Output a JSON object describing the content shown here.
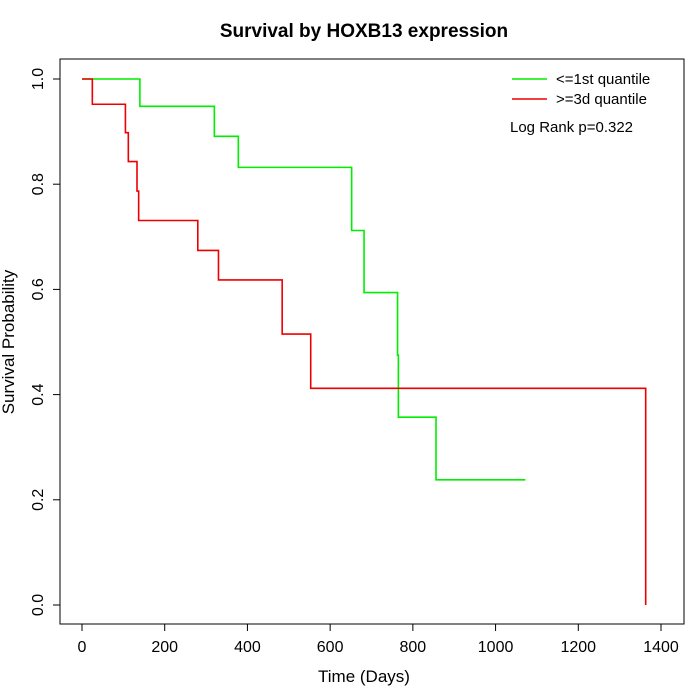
{
  "chart_data": {
    "type": "line",
    "title": "Survival by HOXB13 expression",
    "xlabel": "Time (Days)",
    "ylabel": "Survival Probability",
    "xlim": [
      0,
      1400
    ],
    "ylim": [
      0,
      1.0
    ],
    "x_ticks": [
      0,
      200,
      400,
      600,
      800,
      1000,
      1200,
      1400
    ],
    "y_ticks": [
      0.0,
      0.2,
      0.4,
      0.6,
      0.8,
      1.0
    ],
    "x_tick_labels": [
      "0",
      "200",
      "400",
      "600",
      "800",
      "1000",
      "1200",
      "1400"
    ],
    "y_tick_labels": [
      "0.0",
      "0.2",
      "0.4",
      "0.6",
      "0.8",
      "1.0"
    ],
    "legend_position": "top-right",
    "grid": false,
    "annotation": "Log Rank p=0.322",
    "series": [
      {
        "name": "<=1st quantile",
        "color": "#00ee00",
        "step": true,
        "points": [
          [
            0,
            1.0
          ],
          [
            140,
            1.0
          ],
          [
            140,
            0.948
          ],
          [
            320,
            0.948
          ],
          [
            320,
            0.891
          ],
          [
            378,
            0.891
          ],
          [
            378,
            0.832
          ],
          [
            652,
            0.832
          ],
          [
            652,
            0.712
          ],
          [
            682,
            0.712
          ],
          [
            682,
            0.594
          ],
          [
            763,
            0.594
          ],
          [
            763,
            0.475
          ],
          [
            765,
            0.475
          ],
          [
            765,
            0.357
          ],
          [
            856,
            0.357
          ],
          [
            856,
            0.238
          ],
          [
            1072,
            0.238
          ]
        ]
      },
      {
        "name": ">=3d quantile",
        "color": "#ee0000",
        "step": true,
        "points": [
          [
            0,
            1.0
          ],
          [
            25,
            1.0
          ],
          [
            25,
            0.952
          ],
          [
            105,
            0.952
          ],
          [
            105,
            0.898
          ],
          [
            112,
            0.898
          ],
          [
            112,
            0.843
          ],
          [
            133,
            0.843
          ],
          [
            133,
            0.787
          ],
          [
            137,
            0.787
          ],
          [
            137,
            0.731
          ],
          [
            280,
            0.731
          ],
          [
            280,
            0.674
          ],
          [
            330,
            0.674
          ],
          [
            330,
            0.618
          ],
          [
            484,
            0.618
          ],
          [
            484,
            0.515
          ],
          [
            553,
            0.515
          ],
          [
            553,
            0.412
          ],
          [
            1363,
            0.412
          ],
          [
            1363,
            0.0
          ]
        ]
      }
    ]
  }
}
